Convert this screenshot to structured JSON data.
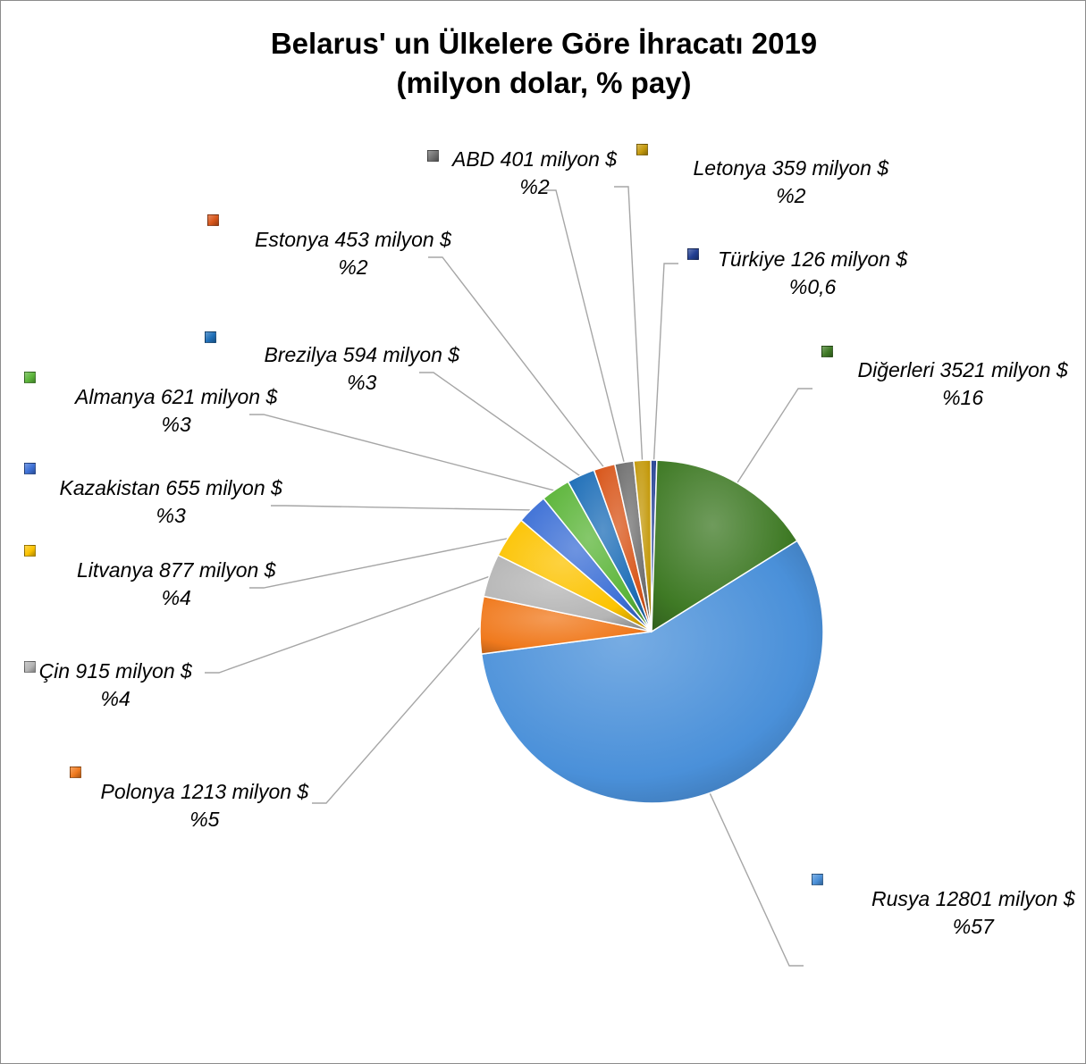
{
  "chart_data": {
    "type": "pie",
    "title": "Belarus' un Ülkelere Göre İhracatı 2019",
    "subtitle": "(milyon dolar, % pay)",
    "unit": "milyon $",
    "slices": [
      {
        "name": "Rusya",
        "value": 12801,
        "percent_label": "%57",
        "label": "Rusya 12801 milyon $",
        "color": "#4a90d9"
      },
      {
        "name": "Polonya",
        "value": 1213,
        "percent_label": "%5",
        "label": "Polonya 1213 milyon $",
        "color": "#f07a1e"
      },
      {
        "name": "Çin",
        "value": 915,
        "percent_label": "%4",
        "label": "Çin 915 milyon $",
        "color": "#b5b5b5"
      },
      {
        "name": "Litvanya",
        "value": 877,
        "percent_label": "%4",
        "label": "Litvanya 877 milyon $",
        "color": "#fcc300"
      },
      {
        "name": "Kazakistan",
        "value": 655,
        "percent_label": "%3",
        "label": "Kazakistan 655 milyon $",
        "color": "#3d70d6"
      },
      {
        "name": "Almanya",
        "value": 621,
        "percent_label": "%3",
        "label": "Almanya 621 milyon $",
        "color": "#5cb53a"
      },
      {
        "name": "Brezilya",
        "value": 594,
        "percent_label": "%3",
        "label": "Brezilya 594 milyon $",
        "color": "#1f6fb8"
      },
      {
        "name": "Estonya",
        "value": 453,
        "percent_label": "%2",
        "label": "Estonya 453 milyon $",
        "color": "#d8561a"
      },
      {
        "name": "ABD",
        "value": 401,
        "percent_label": "%2",
        "label": "ABD 401 milyon $",
        "color": "#707070"
      },
      {
        "name": "Letonya",
        "value": 359,
        "percent_label": "%2",
        "label": "Letonya 359 milyon $",
        "color": "#c49a0d"
      },
      {
        "name": "Türkiye",
        "value": 126,
        "percent_label": "%0,6",
        "label": "Türkiye 126 milyon $",
        "color": "#223f93"
      },
      {
        "name": "Diğerleri",
        "value": 3521,
        "percent_label": "%16",
        "label": "Diğerleri 3521 milyon $",
        "color": "#3f7a25"
      }
    ],
    "legend": "none",
    "grid": false
  }
}
